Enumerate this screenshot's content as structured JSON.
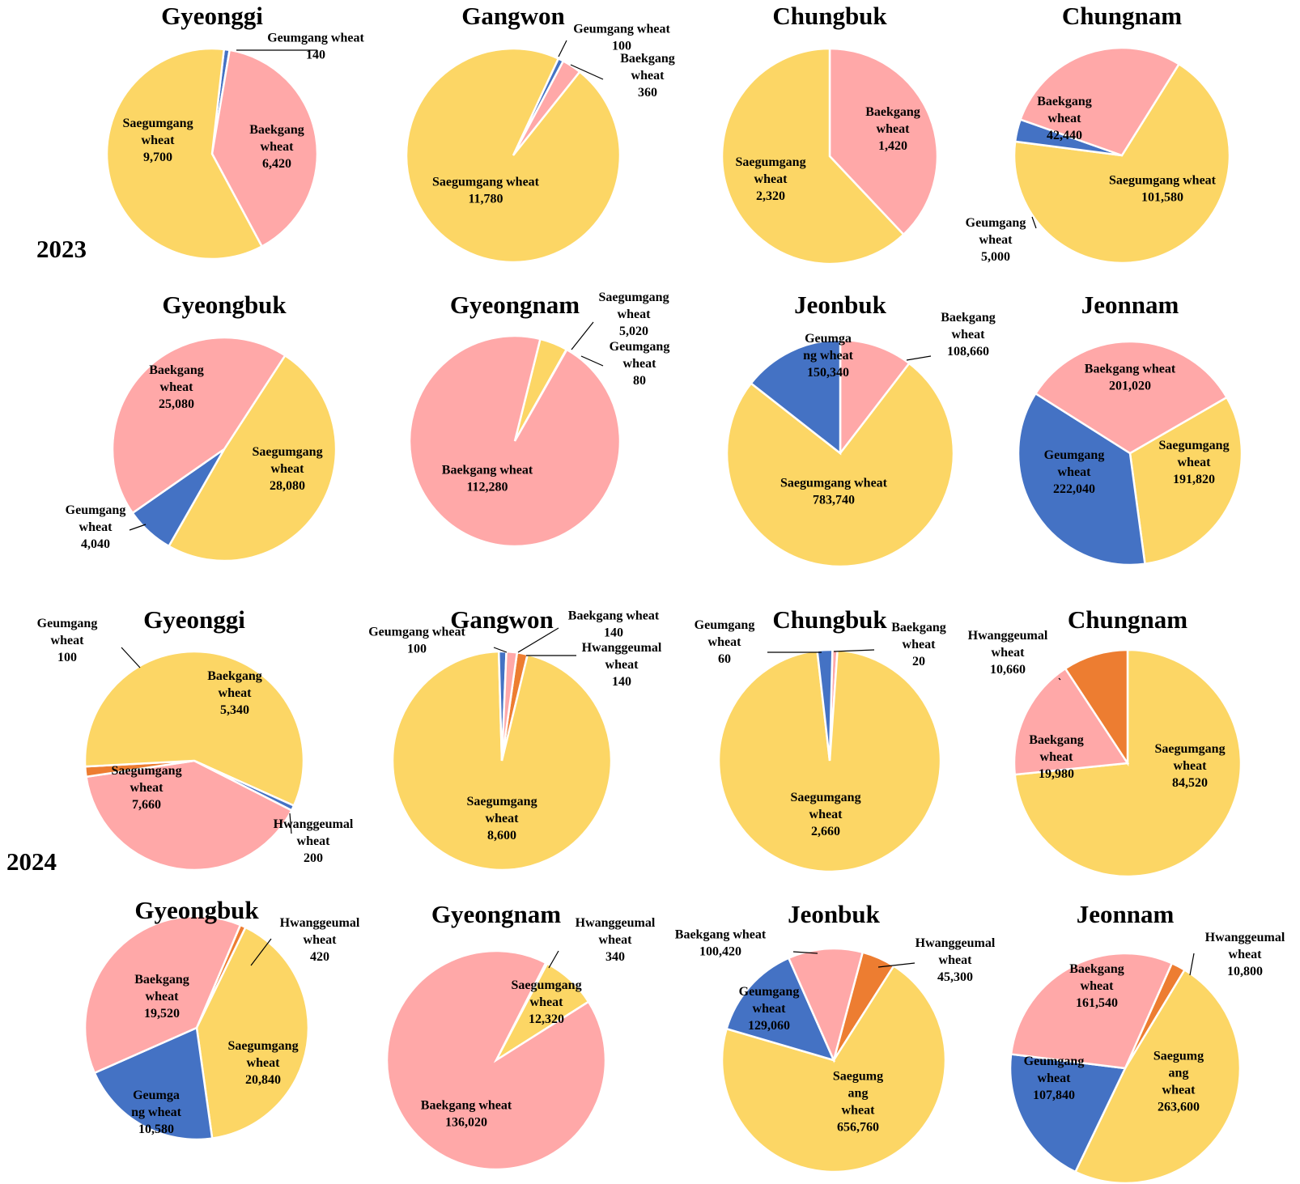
{
  "colors": {
    "Geumgang wheat": "#4472C4",
    "Baekgang wheat": "#FFA8A8",
    "Saegumgang wheat": "#FCD665",
    "Hwanggeumal wheat": "#ED7D31"
  },
  "year_labels": [
    "2023",
    "2024"
  ],
  "chart_data": [
    {
      "type": "pie",
      "year": "2023",
      "title": "Gyeonggi",
      "slices": [
        {
          "name": "Geumgang wheat",
          "value": 140,
          "label": [
            "Geumgang wheat",
            "140"
          ]
        },
        {
          "name": "Baekgang wheat",
          "value": 6420,
          "label": [
            "Baekgang",
            "wheat",
            "6,420"
          ]
        },
        {
          "name": "Saegumgang wheat",
          "value": 9700,
          "label": [
            "Saegumgang",
            "wheat",
            "9,700"
          ]
        }
      ]
    },
    {
      "type": "pie",
      "year": "2023",
      "title": "Gangwon",
      "slices": [
        {
          "name": "Geumgang wheat",
          "value": 100,
          "label": [
            "Geumgang wheat",
            "100"
          ]
        },
        {
          "name": "Baekgang wheat",
          "value": 360,
          "label": [
            "Baekgang",
            "wheat",
            "360"
          ]
        },
        {
          "name": "Saegumgang wheat",
          "value": 11780,
          "label": [
            "Saegumgang wheat",
            "11,780"
          ]
        }
      ]
    },
    {
      "type": "pie",
      "year": "2023",
      "title": "Chungbuk",
      "slices": [
        {
          "name": "Baekgang wheat",
          "value": 1420,
          "label": [
            "Baekgang",
            "wheat",
            "1,420"
          ]
        },
        {
          "name": "Saegumgang wheat",
          "value": 2320,
          "label": [
            "Saegumgang",
            "wheat",
            "2,320"
          ]
        }
      ]
    },
    {
      "type": "pie",
      "year": "2023",
      "title": "Chungnam",
      "slices": [
        {
          "name": "Saegumgang wheat",
          "value": 101580,
          "label": [
            "Saegumgang wheat",
            "101,580"
          ]
        },
        {
          "name": "Geumgang wheat",
          "value": 5000,
          "label": [
            "Geumgang",
            "wheat",
            "5,000"
          ]
        },
        {
          "name": "Baekgang wheat",
          "value": 42440,
          "label": [
            "Baekgang",
            "wheat",
            "42,440"
          ]
        }
      ]
    },
    {
      "type": "pie",
      "year": "2023",
      "title": "Gyeongbuk",
      "slices": [
        {
          "name": "Saegumgang wheat",
          "value": 28080,
          "label": [
            "Saegumgang",
            "wheat",
            "28,080"
          ]
        },
        {
          "name": "Geumgang wheat",
          "value": 4040,
          "label": [
            "Geumgang",
            "wheat",
            "4,040"
          ]
        },
        {
          "name": "Baekgang wheat",
          "value": 25080,
          "label": [
            "Baekgang",
            "wheat",
            "25,080"
          ]
        }
      ]
    },
    {
      "type": "pie",
      "year": "2023",
      "title": "Gyeongnam",
      "slices": [
        {
          "name": "Saegumgang wheat",
          "value": 5020,
          "label": [
            "Saegumgang",
            "wheat",
            "5,020"
          ]
        },
        {
          "name": "Geumgang wheat",
          "value": 80,
          "label": [
            "Geumgang",
            "wheat",
            "80"
          ]
        },
        {
          "name": "Baekgang wheat",
          "value": 112280,
          "label": [
            "Baekgang wheat",
            "112,280"
          ]
        }
      ]
    },
    {
      "type": "pie",
      "year": "2023",
      "title": "Jeonbuk",
      "slices": [
        {
          "name": "Baekgang wheat",
          "value": 108660,
          "label": [
            "Baekgang",
            "wheat",
            "108,660"
          ]
        },
        {
          "name": "Saegumgang wheat",
          "value": 783740,
          "label": [
            "Saegumgang wheat",
            "783,740"
          ]
        },
        {
          "name": "Geumgang wheat",
          "value": 150340,
          "label": [
            "Geumga",
            "ng wheat",
            "150,340"
          ]
        }
      ]
    },
    {
      "type": "pie",
      "year": "2023",
      "title": "Jeonnam",
      "slices": [
        {
          "name": "Saegumgang wheat",
          "value": 191820,
          "label": [
            "Saegumgang",
            "wheat",
            "191,820"
          ]
        },
        {
          "name": "Geumgang wheat",
          "value": 222040,
          "label": [
            "Geumgang",
            "wheat",
            "222,040"
          ]
        },
        {
          "name": "Baekgang wheat",
          "value": 201020,
          "label": [
            "Baekgang wheat",
            "201,020"
          ]
        }
      ]
    },
    {
      "type": "pie",
      "year": "2024",
      "title": "Gyeonggi",
      "slices": [
        {
          "name": "Baekgang wheat",
          "value": 5340,
          "label": [
            "Baekgang",
            "wheat",
            "5,340"
          ]
        },
        {
          "name": "Hwanggeumal wheat",
          "value": 200,
          "label": [
            "Hwanggeumal",
            "wheat",
            "200"
          ]
        },
        {
          "name": "Saegumgang wheat",
          "value": 7660,
          "label": [
            "Saegumgang",
            "wheat",
            "7,660"
          ]
        },
        {
          "name": "Geumgang wheat",
          "value": 100,
          "label": [
            "Geumgang",
            "wheat",
            "100"
          ]
        }
      ]
    },
    {
      "type": "pie",
      "year": "2024",
      "title": "Gangwon",
      "slices": [
        {
          "name": "Hwanggeumal wheat",
          "value": 140,
          "label": [
            "Hwanggeumal",
            "wheat",
            "140"
          ]
        },
        {
          "name": "Saegumgang wheat",
          "value": 8600,
          "label": [
            "Saegumgang",
            "wheat",
            "8,600"
          ]
        },
        {
          "name": "Geumgang wheat",
          "value": 100,
          "label": [
            "Geumgang wheat",
            "100"
          ]
        },
        {
          "name": "Baekgang wheat",
          "value": 140,
          "label": [
            "Baekgang wheat",
            "140"
          ]
        }
      ]
    },
    {
      "type": "pie",
      "year": "2024",
      "title": "Chungbuk",
      "slices": [
        {
          "name": "Baekgang wheat",
          "value": 20,
          "label": [
            "Baekgang",
            "wheat",
            "20"
          ]
        },
        {
          "name": "Saegumgang wheat",
          "value": 2660,
          "label": [
            "Saegumgang",
            "wheat",
            "2,660"
          ]
        },
        {
          "name": "Geumgang wheat",
          "value": 60,
          "label": [
            "Geumgang",
            "wheat",
            "60"
          ]
        }
      ]
    },
    {
      "type": "pie",
      "year": "2024",
      "title": "Chungnam",
      "slices": [
        {
          "name": "Saegumgang wheat",
          "value": 84520,
          "label": [
            "Saegumgang",
            "wheat",
            "84,520"
          ]
        },
        {
          "name": "Baekgang wheat",
          "value": 19980,
          "label": [
            "Baekgang",
            "wheat",
            "19,980"
          ]
        },
        {
          "name": "Hwanggeumal wheat",
          "value": 10660,
          "label": [
            "Hwanggeumal",
            "wheat",
            "10,660"
          ]
        }
      ]
    },
    {
      "type": "pie",
      "year": "2024",
      "title": "Gyeongbuk",
      "slices": [
        {
          "name": "Hwanggeumal wheat",
          "value": 420,
          "label": [
            "Hwanggeumal",
            "wheat",
            "420"
          ]
        },
        {
          "name": "Saegumgang wheat",
          "value": 20840,
          "label": [
            "Saegumgang",
            "wheat",
            "20,840"
          ]
        },
        {
          "name": "Geumgang wheat",
          "value": 10580,
          "label": [
            "Geumga",
            "ng wheat",
            "10,580"
          ]
        },
        {
          "name": "Baekgang wheat",
          "value": 19520,
          "label": [
            "Baekgang",
            "wheat",
            "19,520"
          ]
        }
      ]
    },
    {
      "type": "pie",
      "year": "2024",
      "title": "Gyeongnam",
      "slices": [
        {
          "name": "Hwanggeumal wheat",
          "value": 340,
          "label": [
            "Hwanggeumal",
            "wheat",
            "340"
          ]
        },
        {
          "name": "Saegumgang wheat",
          "value": 12320,
          "label": [
            "Saegumgang",
            "wheat",
            "12,320"
          ]
        },
        {
          "name": "Baekgang wheat",
          "value": 136020,
          "label": [
            "Baekgang wheat",
            "136,020"
          ]
        }
      ]
    },
    {
      "type": "pie",
      "year": "2024",
      "title": "Jeonbuk",
      "slices": [
        {
          "name": "Hwanggeumal wheat",
          "value": 45300,
          "label": [
            "Hwanggeumal",
            "wheat",
            "45,300"
          ]
        },
        {
          "name": "Saegumgang wheat",
          "value": 656760,
          "label": [
            "Saegumg",
            "ang",
            "wheat",
            "656,760"
          ]
        },
        {
          "name": "Geumgang wheat",
          "value": 129060,
          "label": [
            "Geumgang",
            "wheat",
            "129,060"
          ]
        },
        {
          "name": "Baekgang wheat",
          "value": 100420,
          "label": [
            "Baekgang wheat",
            "100,420"
          ]
        }
      ]
    },
    {
      "type": "pie",
      "year": "2024",
      "title": "Jeonnam",
      "slices": [
        {
          "name": "Hwanggeumal wheat",
          "value": 10800,
          "label": [
            "Hwanggeumal",
            "wheat",
            "10,800"
          ]
        },
        {
          "name": "Saegumgang wheat",
          "value": 263600,
          "label": [
            "Saegumg",
            "ang",
            "wheat",
            "263,600"
          ]
        },
        {
          "name": "Geumgang wheat",
          "value": 107840,
          "label": [
            "Geumgang",
            "wheat",
            "107,840"
          ]
        },
        {
          "name": "Baekgang wheat",
          "value": 161540,
          "label": [
            "Baekgang",
            "wheat",
            "161,540"
          ]
        }
      ]
    }
  ]
}
